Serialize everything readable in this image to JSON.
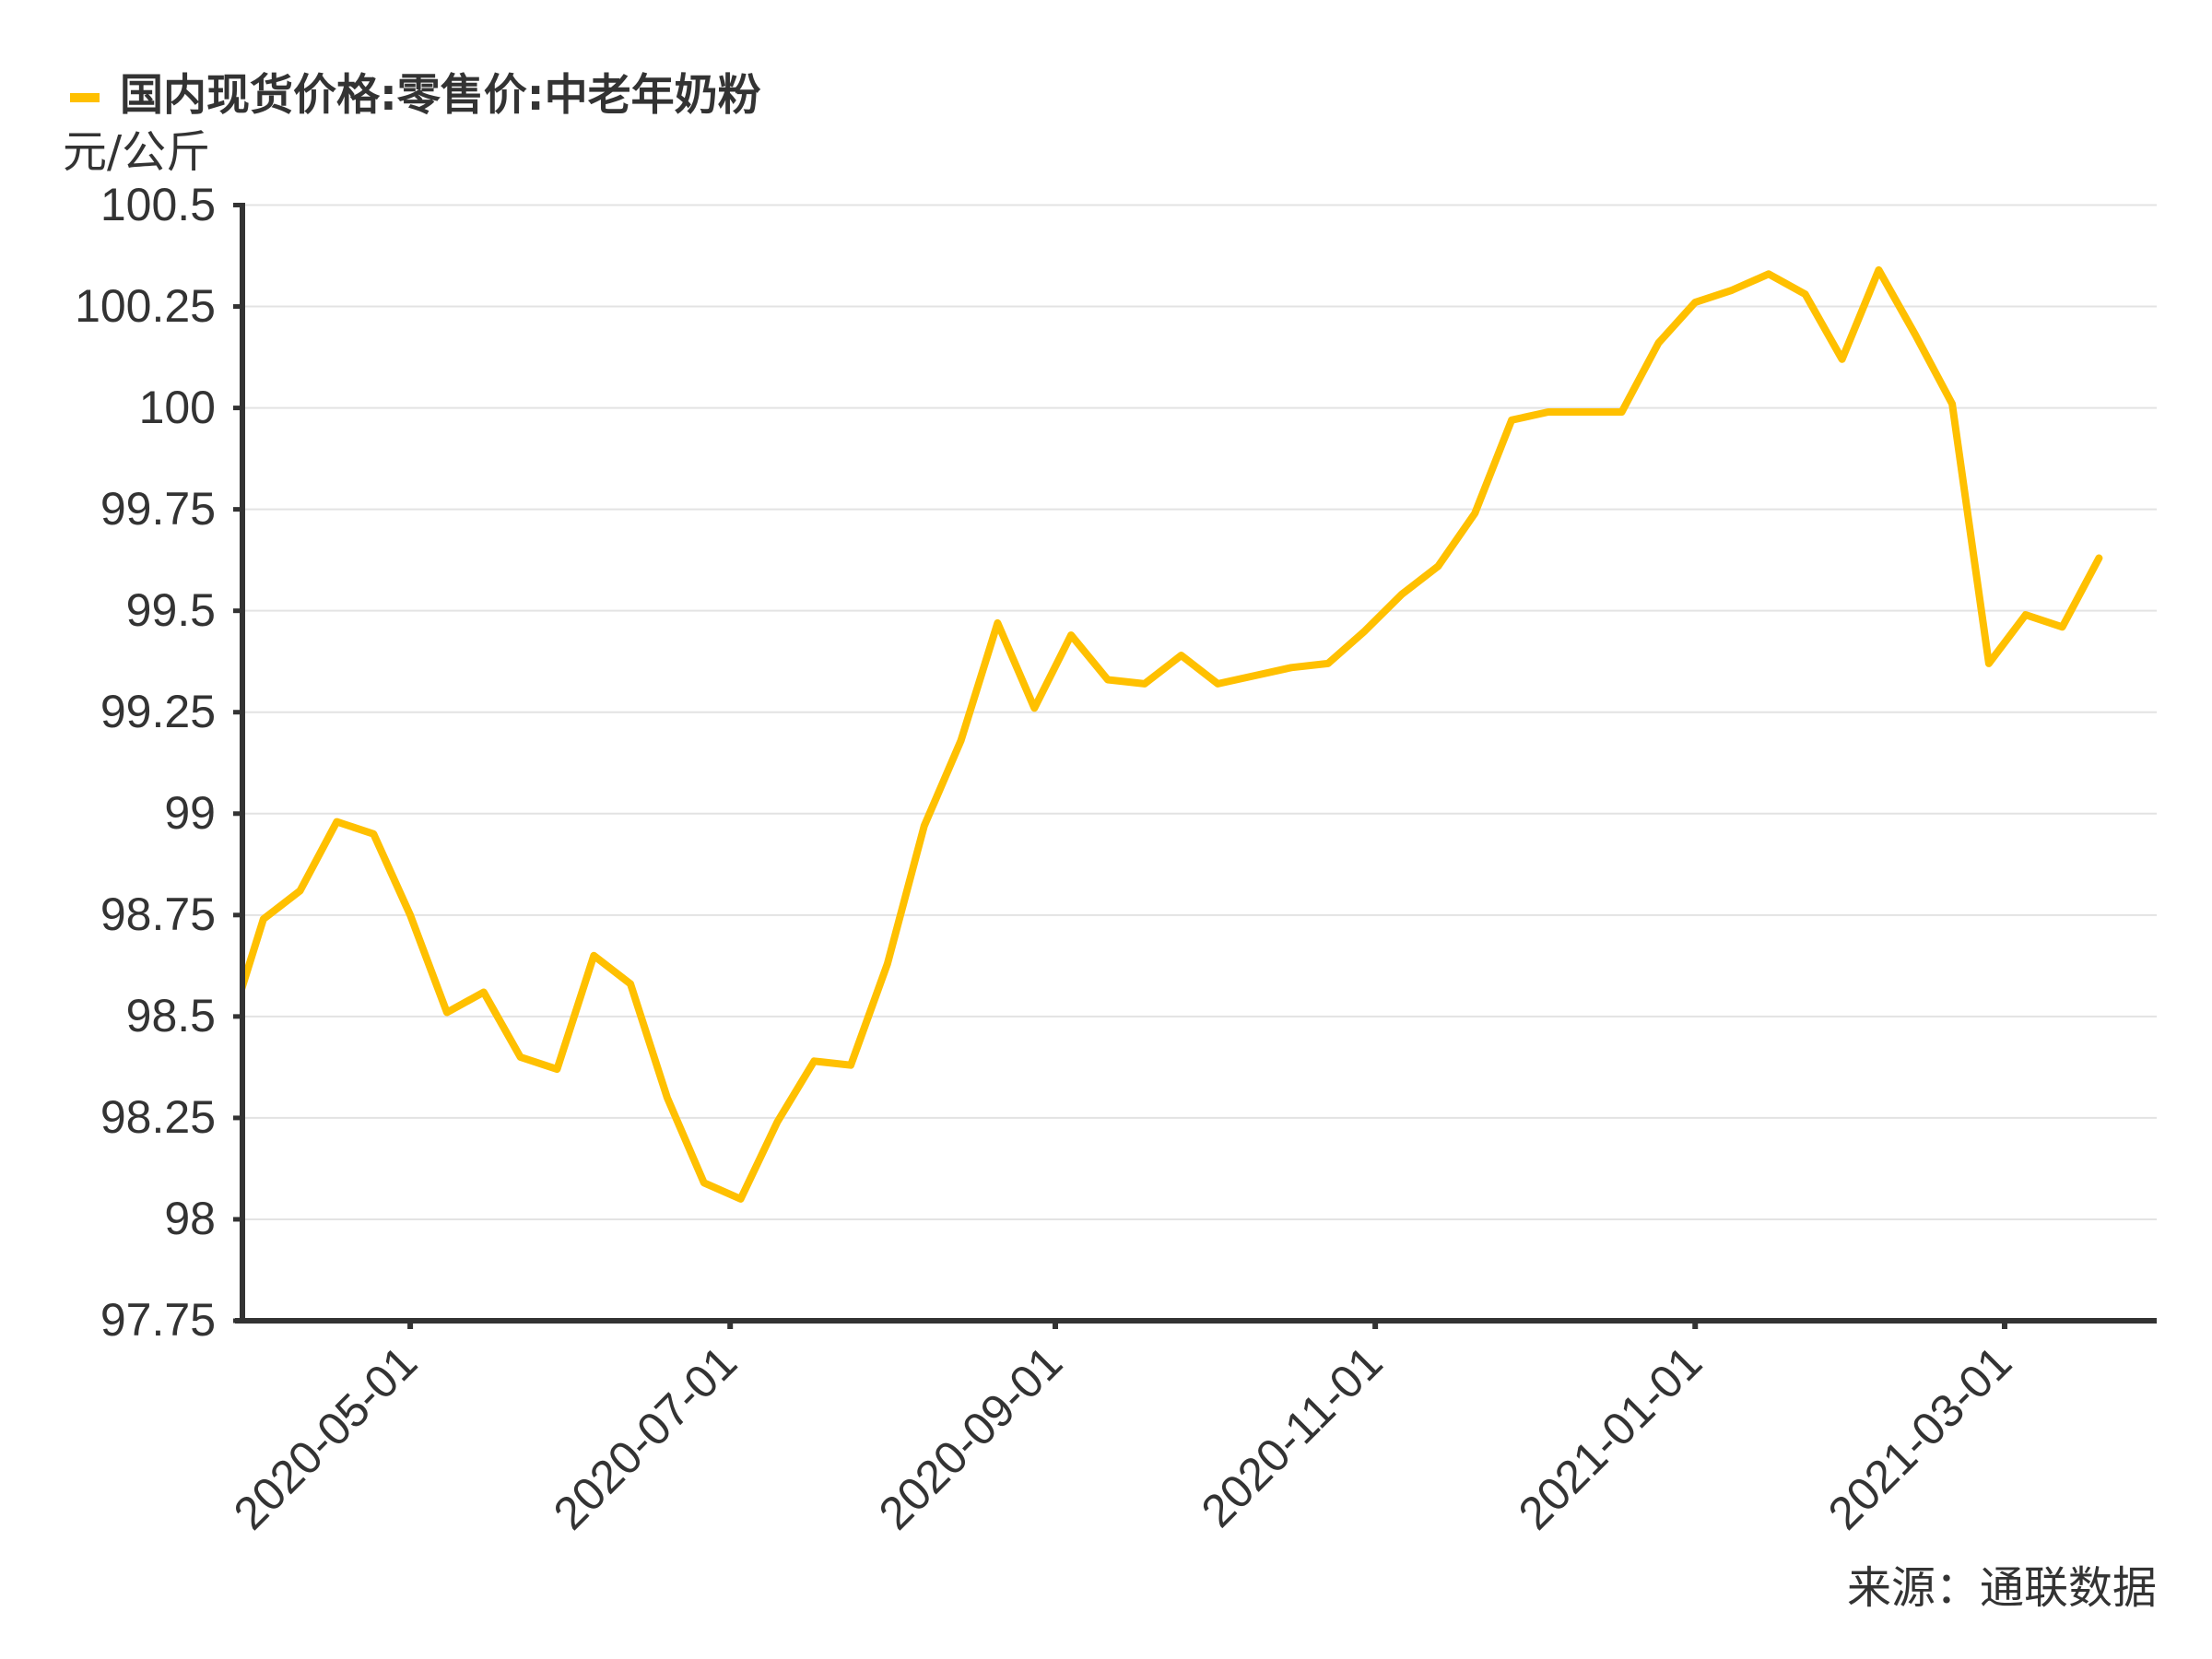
{
  "legend": {
    "label": "国内现货价格:零售价:中老年奶粉",
    "marker_color": "#FFC000"
  },
  "y_axis": {
    "unit": "元/公斤"
  },
  "source": "来源：通联数据",
  "colors": {
    "series": "#FFC000",
    "axis": "#333333",
    "grid": "#E3E3E3",
    "text": "#333333"
  },
  "chart_data": {
    "type": "line",
    "title": "",
    "xlabel": "",
    "ylabel": "元/公斤",
    "ylim": [
      97.75,
      100.5
    ],
    "xlim": [
      "2020-03-30",
      "2021-03-30"
    ],
    "grid": true,
    "legend_position": "top-left",
    "y_ticks": [
      100.5,
      100.25,
      100,
      99.75,
      99.5,
      99.25,
      99,
      98.75,
      98.5,
      98.25,
      98,
      97.75
    ],
    "y_tick_labels": [
      "100.5",
      "100.25",
      "100",
      "99.75",
      "99.5",
      "99.25",
      "99",
      "98.75",
      "98.5",
      "98.25",
      "98",
      "97.75"
    ],
    "x_ticks": [
      "2020-05-01",
      "2020-07-01",
      "2020-09-01",
      "2020-11-01",
      "2021-01-01",
      "2021-03-01"
    ],
    "source": "来源：通联数据",
    "series": [
      {
        "name": "国内现货价格:零售价:中老年奶粉",
        "color": "#FFC000",
        "x": [
          "2020-03-27",
          "2020-04-03",
          "2020-04-10",
          "2020-04-17",
          "2020-04-24",
          "2020-05-01",
          "2020-05-08",
          "2020-05-15",
          "2020-05-22",
          "2020-05-29",
          "2020-06-05",
          "2020-06-12",
          "2020-06-19",
          "2020-06-26",
          "2020-07-03",
          "2020-07-10",
          "2020-07-17",
          "2020-07-24",
          "2020-07-31",
          "2020-08-07",
          "2020-08-14",
          "2020-08-21",
          "2020-08-28",
          "2020-09-04",
          "2020-09-11",
          "2020-09-18",
          "2020-09-25",
          "2020-10-02",
          "2020-10-09",
          "2020-10-16",
          "2020-10-23",
          "2020-10-30",
          "2020-11-06",
          "2020-11-13",
          "2020-11-20",
          "2020-11-27",
          "2020-12-04",
          "2020-12-11",
          "2020-12-18",
          "2020-12-25",
          "2021-01-01",
          "2021-01-08",
          "2021-01-15",
          "2021-01-22",
          "2021-01-29",
          "2021-02-05",
          "2021-02-12",
          "2021-02-19",
          "2021-02-26",
          "2021-03-05",
          "2021-03-12",
          "2021-03-19"
        ],
        "values": [
          98.45,
          98.74,
          98.81,
          98.98,
          98.95,
          98.75,
          98.51,
          98.56,
          98.4,
          98.37,
          98.65,
          98.58,
          98.3,
          98.09,
          98.05,
          98.24,
          98.39,
          98.38,
          98.63,
          98.97,
          99.18,
          99.47,
          99.26,
          99.44,
          99.33,
          99.32,
          99.39,
          99.32,
          99.34,
          99.36,
          99.37,
          99.45,
          99.54,
          99.61,
          99.74,
          99.97,
          99.99,
          99.99,
          99.99,
          100.16,
          100.26,
          100.29,
          100.33,
          100.28,
          100.12,
          100.34,
          100.18,
          100.01,
          99.37,
          99.49,
          99.46,
          99.63
        ]
      }
    ]
  }
}
